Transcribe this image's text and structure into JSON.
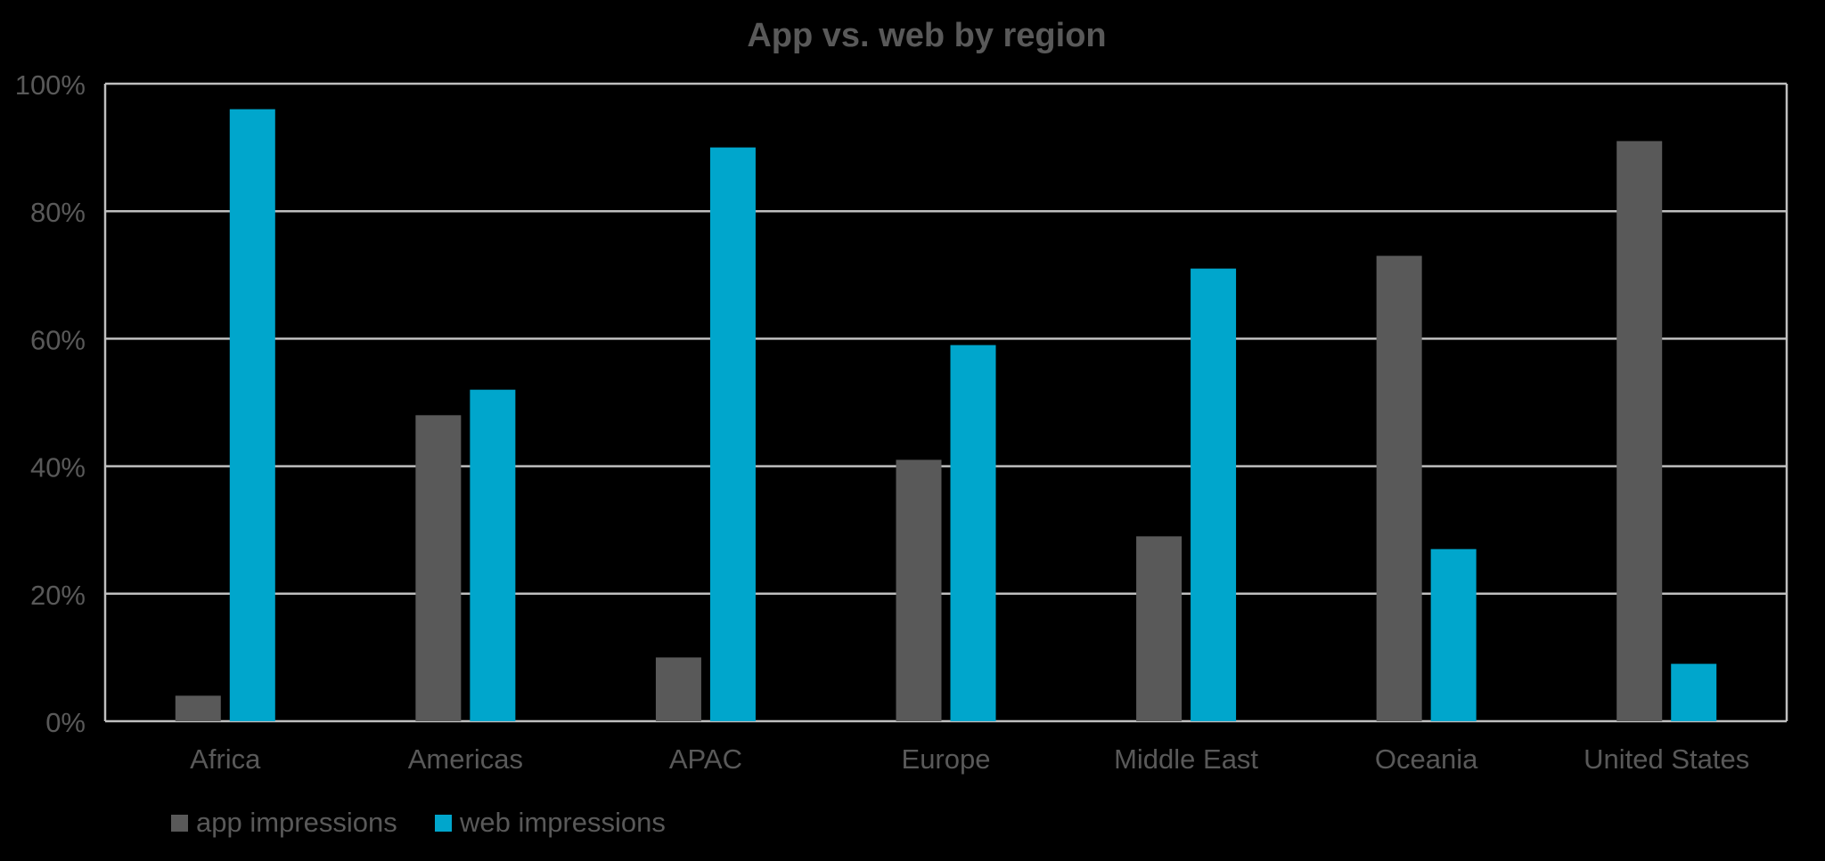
{
  "colors": {
    "background": "#000000",
    "text": "#595959",
    "grid": "#bfbfbf",
    "app": "#595959",
    "web": "#00a6cc"
  },
  "chart_data": {
    "type": "bar",
    "title": "App vs. web by region",
    "categories": [
      "Africa",
      "Americas",
      "APAC",
      "Europe",
      "Middle East",
      "Oceania",
      "United States"
    ],
    "series": [
      {
        "name": "app impressions",
        "values": [
          0.04,
          0.48,
          0.1,
          0.41,
          0.29,
          0.73,
          0.91
        ]
      },
      {
        "name": "web impressions",
        "values": [
          0.96,
          0.52,
          0.9,
          0.59,
          0.71,
          0.27,
          0.09
        ]
      }
    ],
    "ylim": [
      0,
      1
    ],
    "yticks": [
      0,
      0.2,
      0.4,
      0.6,
      0.8,
      1.0
    ],
    "ytick_labels": [
      "0%",
      "20%",
      "40%",
      "60%",
      "80%",
      "100%"
    ],
    "grid": true,
    "legend_position": "bottom-left"
  }
}
